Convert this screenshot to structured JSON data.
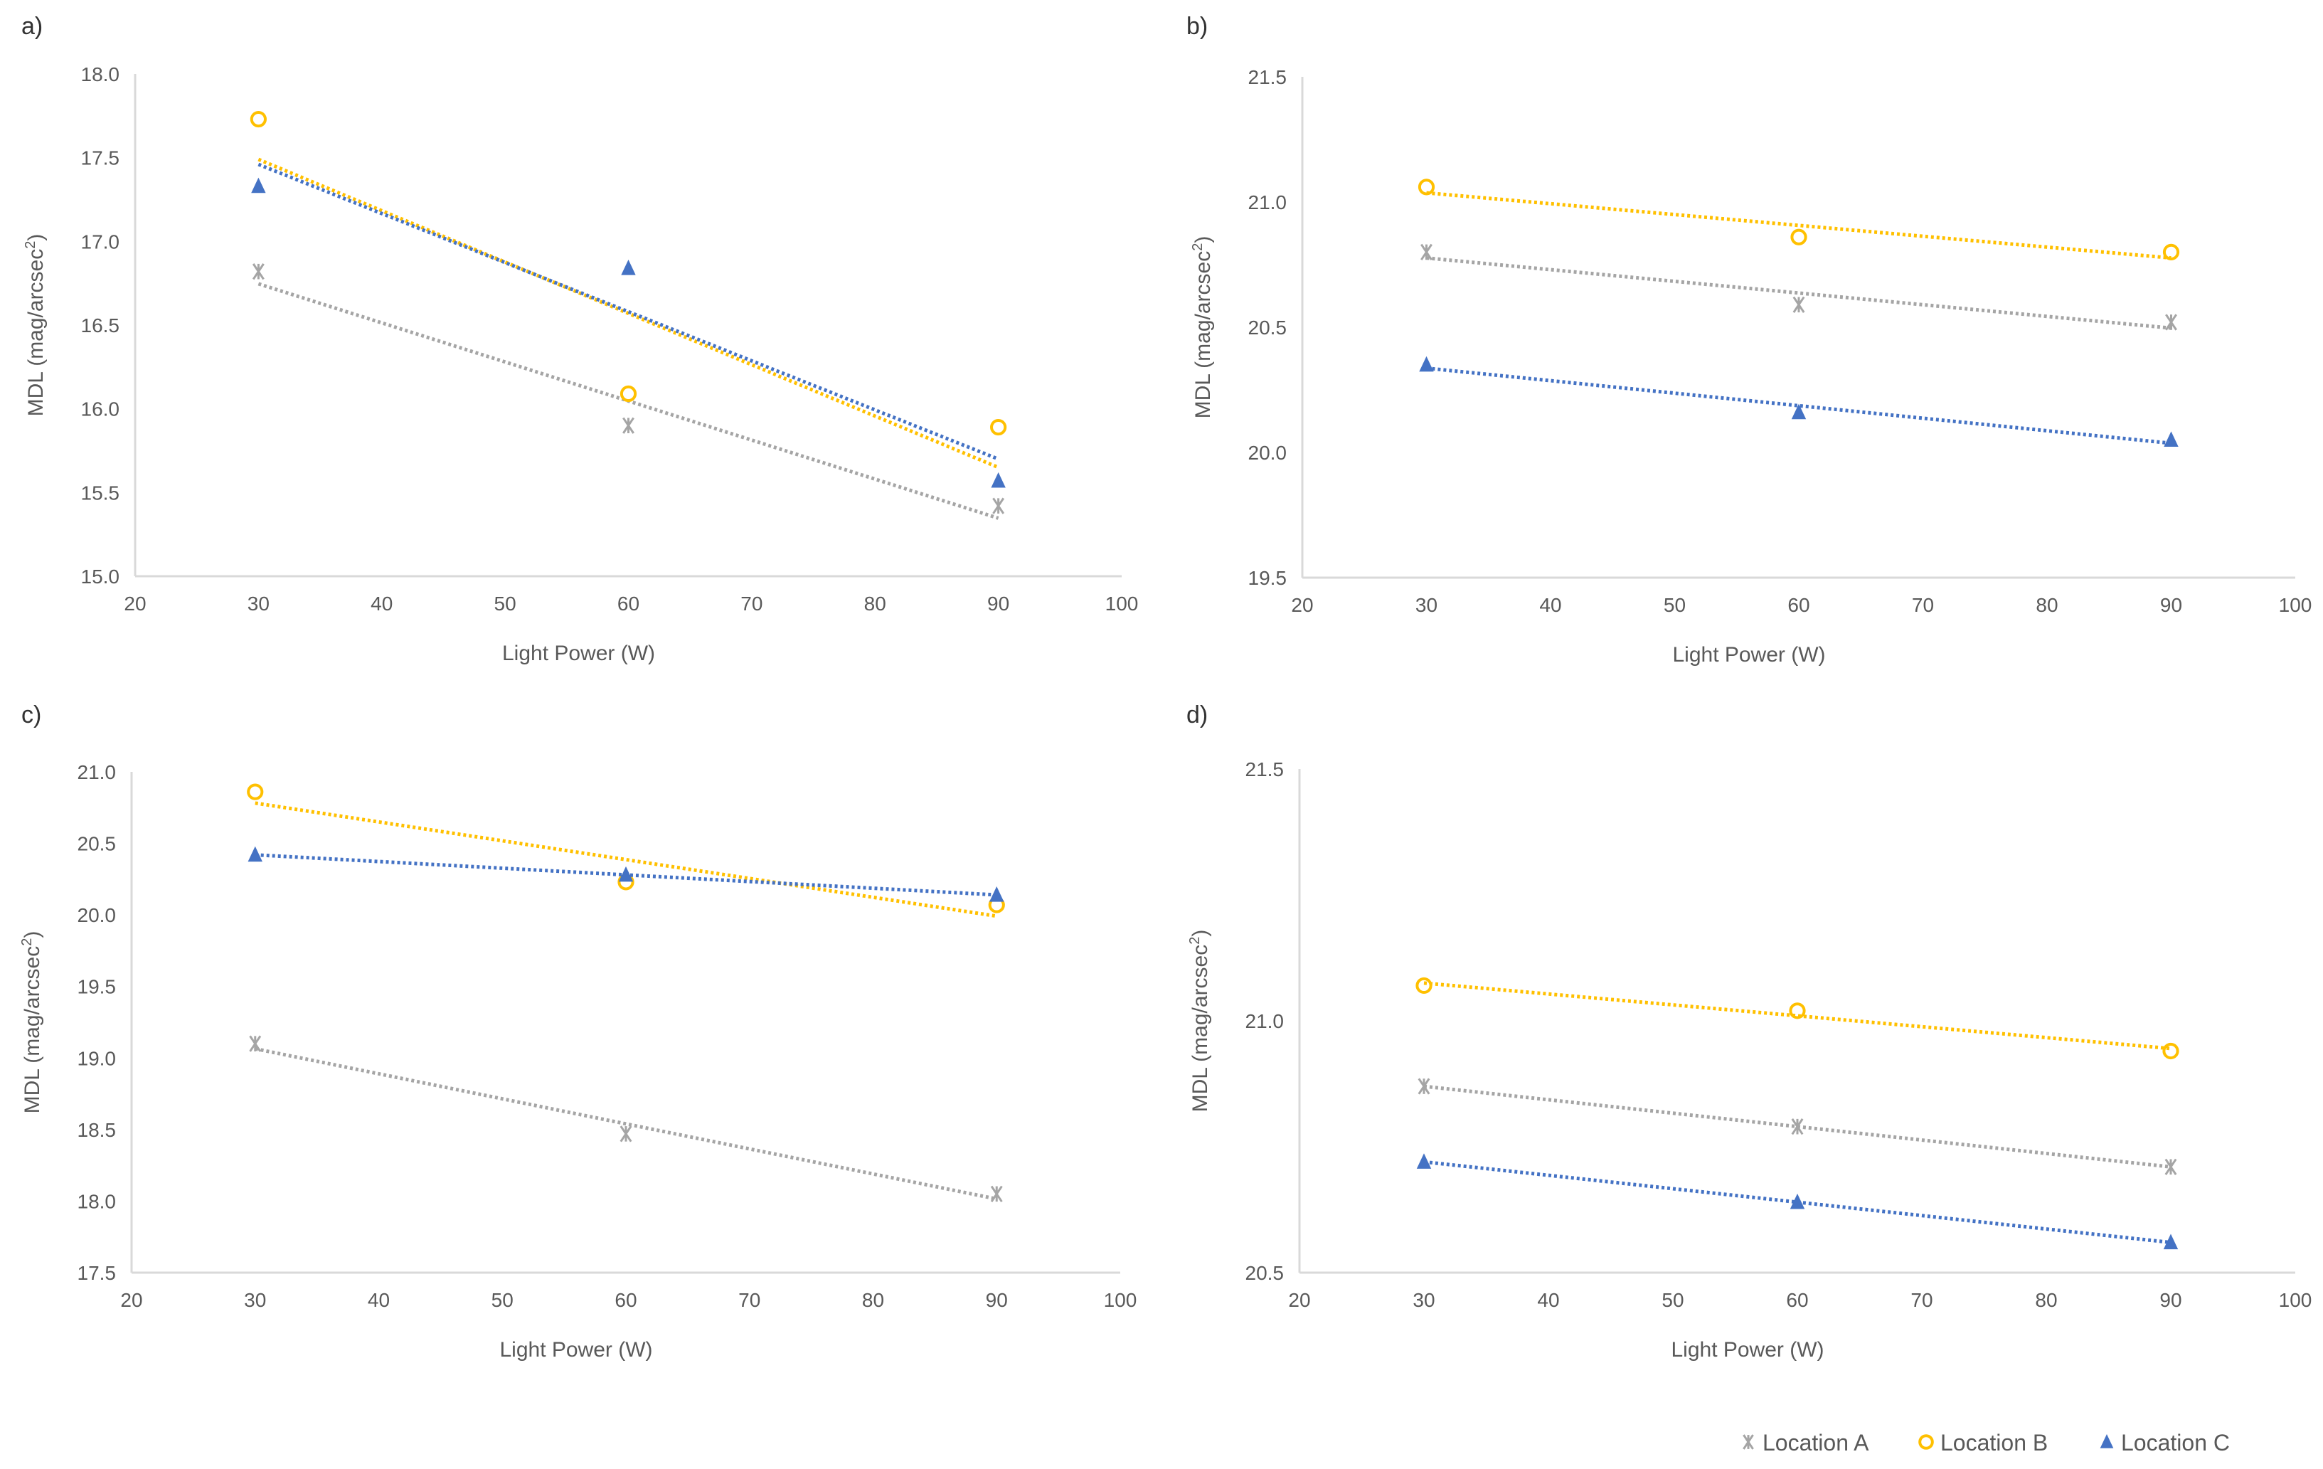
{
  "colors": {
    "Location A": "#a5a5a5",
    "Location B": "#ffc000",
    "Location C": "#4472c4",
    "axis": "#d9d9d9",
    "text": "#595959"
  },
  "legend": {
    "position": "bottom-right",
    "items": [
      {
        "label": "Location A",
        "marker": "asterisk"
      },
      {
        "label": "Location B",
        "marker": "circle"
      },
      {
        "label": "Location C",
        "marker": "triangle"
      }
    ]
  },
  "chart_data": [
    {
      "type": "scatter",
      "panel_label": "a)",
      "xlabel": "Light Power (W)",
      "ylabel": "MDL (mag/arcsec",
      "ylabel_sup": "2",
      "ylabel_end": ")",
      "xlim": [
        20,
        100
      ],
      "xticks": [
        20,
        30,
        40,
        50,
        60,
        70,
        80,
        90,
        100
      ],
      "ylim": [
        15.0,
        18.0
      ],
      "yticks": [
        "15.0",
        "15.5",
        "16.0",
        "16.5",
        "17.0",
        "17.5",
        "18.0"
      ],
      "grid": false,
      "trendline": "linear dotted",
      "x": [
        30,
        60,
        90
      ],
      "series": [
        {
          "name": "Location A",
          "values": [
            16.82,
            15.9,
            15.42
          ]
        },
        {
          "name": "Location B",
          "values": [
            17.73,
            16.09,
            15.89
          ]
        },
        {
          "name": "Location C",
          "values": [
            17.33,
            16.84,
            15.57
          ]
        }
      ]
    },
    {
      "type": "scatter",
      "panel_label": "b)",
      "xlabel": "Light Power (W)",
      "ylabel": "MDL (mag/arcsec",
      "ylabel_sup": "2",
      "ylabel_end": ")",
      "xlim": [
        20,
        100
      ],
      "xticks": [
        20,
        30,
        40,
        50,
        60,
        70,
        80,
        90,
        100
      ],
      "ylim": [
        19.5,
        21.5
      ],
      "yticks": [
        "19.5",
        "20.0",
        "20.5",
        "21.0",
        "21.5"
      ],
      "grid": false,
      "trendline": "linear dotted",
      "x": [
        30,
        60,
        90
      ],
      "series": [
        {
          "name": "Location A",
          "values": [
            20.8,
            20.59,
            20.52
          ]
        },
        {
          "name": "Location B",
          "values": [
            21.06,
            20.86,
            20.8
          ]
        },
        {
          "name": "Location C",
          "values": [
            20.35,
            20.16,
            20.05
          ]
        }
      ]
    },
    {
      "type": "scatter",
      "panel_label": "c)",
      "xlabel": "Light Power (W)",
      "ylabel": "MDL (mag/arcsec",
      "ylabel_sup": "2",
      "ylabel_end": ")",
      "xlim": [
        20,
        100
      ],
      "xticks": [
        20,
        30,
        40,
        50,
        60,
        70,
        80,
        90,
        100
      ],
      "ylim": [
        17.5,
        21.0
      ],
      "yticks": [
        "17.5",
        "18.0",
        "18.5",
        "19.0",
        "19.5",
        "20.0",
        "20.5",
        "21.0"
      ],
      "grid": false,
      "trendline": "linear dotted",
      "x": [
        30,
        60,
        90
      ],
      "series": [
        {
          "name": "Location A",
          "values": [
            19.1,
            18.47,
            18.05
          ]
        },
        {
          "name": "Location B",
          "values": [
            20.86,
            20.23,
            20.07
          ]
        },
        {
          "name": "Location C",
          "values": [
            20.42,
            20.28,
            20.14
          ]
        }
      ]
    },
    {
      "type": "scatter",
      "panel_label": "d)",
      "xlabel": "Light Power (W)",
      "ylabel": "MDL (mag/arcsec",
      "ylabel_sup": "2",
      "ylabel_end": ")",
      "xlim": [
        20,
        100
      ],
      "xticks": [
        20,
        30,
        40,
        50,
        60,
        70,
        80,
        90,
        100
      ],
      "ylim": [
        20.5,
        21.5
      ],
      "yticks": [
        "20.5",
        "21.0",
        "21.5"
      ],
      "grid": false,
      "trendline": "linear dotted",
      "x": [
        30,
        60,
        90
      ],
      "series": [
        {
          "name": "Location A",
          "values": [
            20.87,
            20.79,
            20.71
          ]
        },
        {
          "name": "Location B",
          "values": [
            21.07,
            21.02,
            20.94
          ]
        },
        {
          "name": "Location C",
          "values": [
            20.72,
            20.64,
            20.56
          ]
        }
      ]
    }
  ]
}
